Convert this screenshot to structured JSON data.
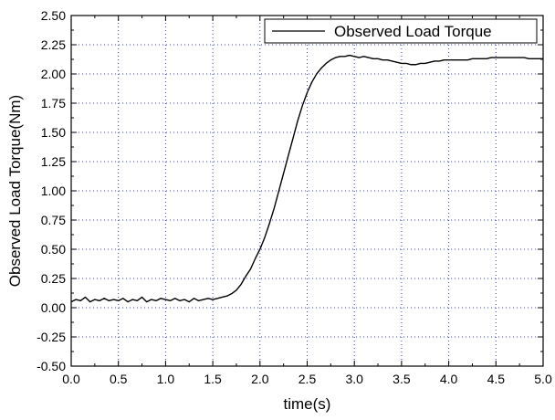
{
  "chart_data": {
    "type": "line",
    "title": "",
    "xlabel": "time(s)",
    "ylabel": "Observed Load Torque(Nm)",
    "xlim": [
      0.0,
      5.0
    ],
    "ylim": [
      -0.5,
      2.5
    ],
    "x_ticks": [
      "0.0",
      "0.5",
      "1.0",
      "1.5",
      "2.0",
      "2.5",
      "3.0",
      "3.5",
      "4.0",
      "4.5",
      "5.0"
    ],
    "y_ticks": [
      "-0.50",
      "-0.25",
      "0.00",
      "0.25",
      "0.50",
      "0.75",
      "1.00",
      "1.25",
      "1.50",
      "1.75",
      "2.00",
      "2.25",
      "2.50"
    ],
    "grid": true,
    "legend_position": "top-right",
    "series": [
      {
        "name": "Observed Load Torque",
        "color": "#000000",
        "x": [
          0.0,
          0.05,
          0.1,
          0.15,
          0.2,
          0.25,
          0.3,
          0.35,
          0.4,
          0.45,
          0.5,
          0.55,
          0.6,
          0.65,
          0.7,
          0.75,
          0.8,
          0.85,
          0.9,
          0.95,
          1.0,
          1.05,
          1.1,
          1.15,
          1.2,
          1.25,
          1.3,
          1.35,
          1.4,
          1.45,
          1.5,
          1.55,
          1.6,
          1.65,
          1.7,
          1.75,
          1.8,
          1.85,
          1.9,
          1.95,
          2.0,
          2.05,
          2.1,
          2.15,
          2.2,
          2.25,
          2.3,
          2.35,
          2.4,
          2.45,
          2.5,
          2.55,
          2.6,
          2.65,
          2.7,
          2.75,
          2.8,
          2.85,
          2.9,
          2.95,
          3.0,
          3.05,
          3.1,
          3.15,
          3.2,
          3.25,
          3.3,
          3.35,
          3.4,
          3.45,
          3.5,
          3.55,
          3.6,
          3.65,
          3.7,
          3.75,
          3.8,
          3.85,
          3.9,
          3.95,
          4.0,
          4.05,
          4.1,
          4.15,
          4.2,
          4.25,
          4.3,
          4.35,
          4.4,
          4.45,
          4.5,
          4.55,
          4.6,
          4.65,
          4.7,
          4.75,
          4.8,
          4.85,
          4.9,
          4.95,
          5.0
        ],
        "y": [
          0.05,
          0.07,
          0.06,
          0.09,
          0.05,
          0.07,
          0.06,
          0.08,
          0.06,
          0.07,
          0.06,
          0.08,
          0.05,
          0.07,
          0.06,
          0.09,
          0.05,
          0.07,
          0.06,
          0.08,
          0.07,
          0.06,
          0.08,
          0.06,
          0.07,
          0.05,
          0.08,
          0.06,
          0.07,
          0.08,
          0.07,
          0.08,
          0.09,
          0.1,
          0.12,
          0.15,
          0.2,
          0.27,
          0.33,
          0.42,
          0.5,
          0.6,
          0.72,
          0.85,
          1.0,
          1.15,
          1.3,
          1.45,
          1.6,
          1.73,
          1.84,
          1.93,
          2.0,
          2.05,
          2.09,
          2.12,
          2.14,
          2.15,
          2.15,
          2.16,
          2.15,
          2.14,
          2.15,
          2.14,
          2.13,
          2.13,
          2.12,
          2.12,
          2.11,
          2.1,
          2.09,
          2.09,
          2.08,
          2.08,
          2.09,
          2.09,
          2.1,
          2.11,
          2.11,
          2.12,
          2.12,
          2.12,
          2.12,
          2.12,
          2.12,
          2.13,
          2.13,
          2.13,
          2.13,
          2.14,
          2.14,
          2.14,
          2.14,
          2.14,
          2.14,
          2.14,
          2.14,
          2.13,
          2.13,
          2.13,
          2.13
        ]
      }
    ]
  }
}
